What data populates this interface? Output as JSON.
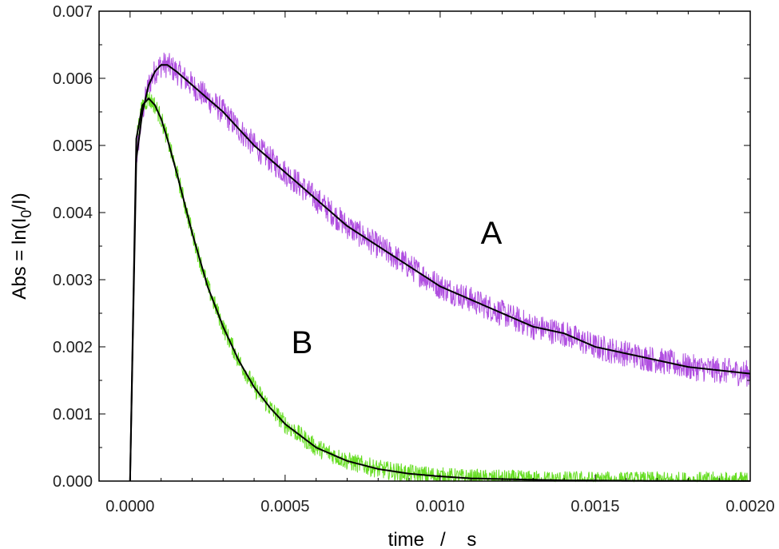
{
  "chart_data": {
    "type": "line",
    "xlabel": "time   /    s",
    "ylabel_prefix": "Abs = ln(I",
    "ylabel_sub": "0",
    "ylabel_suffix": "/I)",
    "xlim": [
      -0.0001,
      0.002
    ],
    "ylim": [
      0,
      0.007
    ],
    "x_ticks": [
      "0.0000",
      "0.0005",
      "0.0010",
      "0.0015",
      "0.0020"
    ],
    "y_ticks": [
      "0.000",
      "0.001",
      "0.002",
      "0.003",
      "0.004",
      "0.005",
      "0.006",
      "0.007"
    ],
    "grid": false,
    "legend": "none",
    "series": [
      {
        "label": "A",
        "color": "#b04fe0",
        "noise": 0.0002,
        "x": [
          0,
          2e-05,
          4e-05,
          6e-05,
          8e-05,
          0.0001,
          0.00012,
          0.00015,
          0.0002,
          0.0003,
          0.0004,
          0.0005,
          0.0006,
          0.0007,
          0.0008,
          0.0009,
          0.001,
          0.0011,
          0.0012,
          0.0013,
          0.0014,
          0.0015,
          0.0016,
          0.0017,
          0.0018,
          0.0019,
          0.002
        ],
        "y": [
          0,
          0.0048,
          0.0055,
          0.0059,
          0.0061,
          0.0062,
          0.0062,
          0.0061,
          0.0059,
          0.0055,
          0.005,
          0.0046,
          0.0042,
          0.0038,
          0.0035,
          0.0032,
          0.0029,
          0.0027,
          0.0025,
          0.0023,
          0.0022,
          0.002,
          0.0019,
          0.0018,
          0.0017,
          0.00165,
          0.0016
        ]
      },
      {
        "label": "B",
        "color": "#66dd22",
        "noise": 0.00014,
        "x": [
          0,
          2e-05,
          4e-05,
          6e-05,
          8e-05,
          0.0001,
          0.00012,
          0.00015,
          0.0002,
          0.00025,
          0.0003,
          0.00035,
          0.0004,
          0.00045,
          0.0005,
          0.0006,
          0.0007,
          0.0008,
          0.0009,
          0.001,
          0.0011,
          0.0012,
          0.0014,
          0.0016,
          0.0018,
          0.002
        ],
        "y": [
          0,
          0.0051,
          0.0056,
          0.0057,
          0.0056,
          0.0054,
          0.0051,
          0.0046,
          0.0037,
          0.0029,
          0.0023,
          0.0018,
          0.0014,
          0.0011,
          0.00085,
          0.0005,
          0.0003,
          0.00018,
          0.00011,
          7e-05,
          4e-05,
          3e-05,
          1e-05,
          5e-06,
          2e-06,
          1e-06
        ]
      }
    ]
  }
}
